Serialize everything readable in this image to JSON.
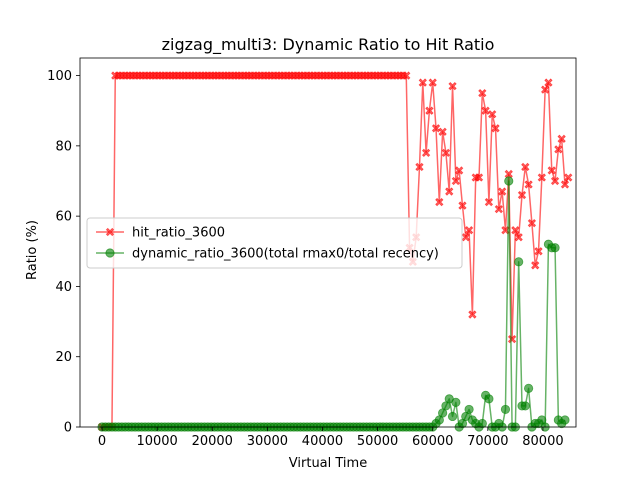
{
  "chart_data": {
    "type": "line",
    "title": "zigzag_multi3: Dynamic Ratio to Hit Ratio",
    "xlabel": "Virtual Time",
    "ylabel": "Ratio (%)",
    "xlim": [
      -4000,
      86000
    ],
    "ylim": [
      0,
      105
    ],
    "xticks": [
      0,
      10000,
      20000,
      30000,
      40000,
      50000,
      60000,
      70000,
      80000
    ],
    "yticks": [
      0,
      20,
      40,
      60,
      80,
      100
    ],
    "legend_placement": "center-left",
    "grid": false,
    "series": [
      {
        "name": "hit_ratio_3600",
        "color": "#ff0000",
        "marker": "X",
        "points": [
          [
            0,
            0
          ],
          [
            600,
            0
          ],
          [
            1200,
            0
          ],
          [
            1800,
            0
          ],
          [
            2400,
            100
          ],
          [
            3000,
            100
          ],
          [
            3600,
            100
          ],
          [
            4200,
            100
          ],
          [
            4800,
            100
          ],
          [
            5400,
            100
          ],
          [
            6000,
            100
          ],
          [
            6600,
            100
          ],
          [
            7200,
            100
          ],
          [
            7800,
            100
          ],
          [
            8400,
            100
          ],
          [
            9000,
            100
          ],
          [
            9600,
            100
          ],
          [
            10200,
            100
          ],
          [
            10800,
            100
          ],
          [
            11400,
            100
          ],
          [
            12000,
            100
          ],
          [
            12600,
            100
          ],
          [
            13200,
            100
          ],
          [
            13800,
            100
          ],
          [
            14400,
            100
          ],
          [
            15000,
            100
          ],
          [
            15600,
            100
          ],
          [
            16200,
            100
          ],
          [
            16800,
            100
          ],
          [
            17400,
            100
          ],
          [
            18000,
            100
          ],
          [
            18600,
            100
          ],
          [
            19200,
            100
          ],
          [
            19800,
            100
          ],
          [
            20400,
            100
          ],
          [
            21000,
            100
          ],
          [
            21600,
            100
          ],
          [
            22200,
            100
          ],
          [
            22800,
            100
          ],
          [
            23400,
            100
          ],
          [
            24000,
            100
          ],
          [
            24600,
            100
          ],
          [
            25200,
            100
          ],
          [
            25800,
            100
          ],
          [
            26400,
            100
          ],
          [
            27000,
            100
          ],
          [
            27600,
            100
          ],
          [
            28200,
            100
          ],
          [
            28800,
            100
          ],
          [
            29400,
            100
          ],
          [
            30000,
            100
          ],
          [
            30600,
            100
          ],
          [
            31200,
            100
          ],
          [
            31800,
            100
          ],
          [
            32400,
            100
          ],
          [
            33000,
            100
          ],
          [
            33600,
            100
          ],
          [
            34200,
            100
          ],
          [
            34800,
            100
          ],
          [
            35400,
            100
          ],
          [
            36000,
            100
          ],
          [
            36600,
            100
          ],
          [
            37200,
            100
          ],
          [
            37800,
            100
          ],
          [
            38400,
            100
          ],
          [
            39000,
            100
          ],
          [
            39600,
            100
          ],
          [
            40200,
            100
          ],
          [
            40800,
            100
          ],
          [
            41400,
            100
          ],
          [
            42000,
            100
          ],
          [
            42600,
            100
          ],
          [
            43200,
            100
          ],
          [
            43800,
            100
          ],
          [
            44400,
            100
          ],
          [
            45000,
            100
          ],
          [
            45600,
            100
          ],
          [
            46200,
            100
          ],
          [
            46800,
            100
          ],
          [
            47400,
            100
          ],
          [
            48000,
            100
          ],
          [
            48600,
            100
          ],
          [
            49200,
            100
          ],
          [
            49800,
            100
          ],
          [
            50400,
            100
          ],
          [
            51000,
            100
          ],
          [
            51600,
            100
          ],
          [
            52200,
            100
          ],
          [
            52800,
            100
          ],
          [
            53400,
            100
          ],
          [
            54000,
            100
          ],
          [
            54600,
            100
          ],
          [
            55200,
            100
          ],
          [
            55800,
            51
          ],
          [
            56400,
            47
          ],
          [
            57000,
            54
          ],
          [
            57600,
            74
          ],
          [
            58200,
            98
          ],
          [
            58800,
            78
          ],
          [
            59400,
            90
          ],
          [
            60000,
            98
          ],
          [
            60600,
            85
          ],
          [
            61200,
            64
          ],
          [
            61800,
            84
          ],
          [
            62400,
            78
          ],
          [
            63000,
            67
          ],
          [
            63600,
            97
          ],
          [
            64200,
            70
          ],
          [
            64800,
            73
          ],
          [
            65400,
            63
          ],
          [
            66000,
            54
          ],
          [
            66600,
            56
          ],
          [
            67200,
            32
          ],
          [
            67800,
            71
          ],
          [
            68400,
            71
          ],
          [
            69000,
            95
          ],
          [
            69600,
            90
          ],
          [
            70200,
            64
          ],
          [
            70800,
            89
          ],
          [
            71400,
            85
          ],
          [
            72000,
            62
          ],
          [
            72600,
            67
          ],
          [
            73200,
            56
          ],
          [
            73800,
            72
          ],
          [
            74400,
            25
          ],
          [
            75000,
            56
          ],
          [
            75600,
            54
          ],
          [
            76200,
            66
          ],
          [
            76800,
            74
          ],
          [
            77400,
            69
          ],
          [
            78000,
            58
          ],
          [
            78600,
            46
          ],
          [
            79200,
            50
          ],
          [
            79800,
            71
          ],
          [
            80400,
            96
          ],
          [
            81000,
            98
          ],
          [
            81600,
            73
          ],
          [
            82200,
            70
          ],
          [
            82800,
            79
          ],
          [
            83400,
            82
          ],
          [
            84000,
            69
          ],
          [
            84600,
            71
          ]
        ]
      },
      {
        "name": "dynamic_ratio_3600(total rmax0/total recency)",
        "color": "#008000",
        "marker": "o",
        "points": [
          [
            0,
            0
          ],
          [
            600,
            0
          ],
          [
            1200,
            0
          ],
          [
            1800,
            0
          ],
          [
            2400,
            0
          ],
          [
            3000,
            0
          ],
          [
            3600,
            0
          ],
          [
            4200,
            0
          ],
          [
            4800,
            0
          ],
          [
            5400,
            0
          ],
          [
            6000,
            0
          ],
          [
            6600,
            0
          ],
          [
            7200,
            0
          ],
          [
            7800,
            0
          ],
          [
            8400,
            0
          ],
          [
            9000,
            0
          ],
          [
            9600,
            0
          ],
          [
            10200,
            0
          ],
          [
            10800,
            0
          ],
          [
            11400,
            0
          ],
          [
            12000,
            0
          ],
          [
            12600,
            0
          ],
          [
            13200,
            0
          ],
          [
            13800,
            0
          ],
          [
            14400,
            0
          ],
          [
            15000,
            0
          ],
          [
            15600,
            0
          ],
          [
            16200,
            0
          ],
          [
            16800,
            0
          ],
          [
            17400,
            0
          ],
          [
            18000,
            0
          ],
          [
            18600,
            0
          ],
          [
            19200,
            0
          ],
          [
            19800,
            0
          ],
          [
            20400,
            0
          ],
          [
            21000,
            0
          ],
          [
            21600,
            0
          ],
          [
            22200,
            0
          ],
          [
            22800,
            0
          ],
          [
            23400,
            0
          ],
          [
            24000,
            0
          ],
          [
            24600,
            0
          ],
          [
            25200,
            0
          ],
          [
            25800,
            0
          ],
          [
            26400,
            0
          ],
          [
            27000,
            0
          ],
          [
            27600,
            0
          ],
          [
            28200,
            0
          ],
          [
            28800,
            0
          ],
          [
            29400,
            0
          ],
          [
            30000,
            0
          ],
          [
            30600,
            0
          ],
          [
            31200,
            0
          ],
          [
            31800,
            0
          ],
          [
            32400,
            0
          ],
          [
            33000,
            0
          ],
          [
            33600,
            0
          ],
          [
            34200,
            0
          ],
          [
            34800,
            0
          ],
          [
            35400,
            0
          ],
          [
            36000,
            0
          ],
          [
            36600,
            0
          ],
          [
            37200,
            0
          ],
          [
            37800,
            0
          ],
          [
            38400,
            0
          ],
          [
            39000,
            0
          ],
          [
            39600,
            0
          ],
          [
            40200,
            0
          ],
          [
            40800,
            0
          ],
          [
            41400,
            0
          ],
          [
            42000,
            0
          ],
          [
            42600,
            0
          ],
          [
            43200,
            0
          ],
          [
            43800,
            0
          ],
          [
            44400,
            0
          ],
          [
            45000,
            0
          ],
          [
            45600,
            0
          ],
          [
            46200,
            0
          ],
          [
            46800,
            0
          ],
          [
            47400,
            0
          ],
          [
            48000,
            0
          ],
          [
            48600,
            0
          ],
          [
            49200,
            0
          ],
          [
            49800,
            0
          ],
          [
            50400,
            0
          ],
          [
            51000,
            0
          ],
          [
            51600,
            0
          ],
          [
            52200,
            0
          ],
          [
            52800,
            0
          ],
          [
            53400,
            0
          ],
          [
            54000,
            0
          ],
          [
            54600,
            0
          ],
          [
            55200,
            0
          ],
          [
            55800,
            0
          ],
          [
            56400,
            0
          ],
          [
            57000,
            0
          ],
          [
            57600,
            0
          ],
          [
            58200,
            0
          ],
          [
            58800,
            0
          ],
          [
            59400,
            0
          ],
          [
            60000,
            0
          ],
          [
            60600,
            1
          ],
          [
            61200,
            2
          ],
          [
            61800,
            4
          ],
          [
            62400,
            6
          ],
          [
            63000,
            8
          ],
          [
            63600,
            3
          ],
          [
            64200,
            7
          ],
          [
            64800,
            0
          ],
          [
            65400,
            1
          ],
          [
            66000,
            3
          ],
          [
            66600,
            5
          ],
          [
            67200,
            2
          ],
          [
            67800,
            1
          ],
          [
            68400,
            0
          ],
          [
            69000,
            1
          ],
          [
            69600,
            9
          ],
          [
            70200,
            8
          ],
          [
            70800,
            0
          ],
          [
            71400,
            0
          ],
          [
            72000,
            1
          ],
          [
            72600,
            0
          ],
          [
            73200,
            5
          ],
          [
            73800,
            70
          ],
          [
            74400,
            0
          ],
          [
            75000,
            0
          ],
          [
            75600,
            47
          ],
          [
            76200,
            6
          ],
          [
            76800,
            6
          ],
          [
            77400,
            11
          ],
          [
            78000,
            0
          ],
          [
            78600,
            1
          ],
          [
            79200,
            1
          ],
          [
            79800,
            2
          ],
          [
            80400,
            0
          ],
          [
            81000,
            52
          ],
          [
            81600,
            51
          ],
          [
            82200,
            51
          ],
          [
            82800,
            2
          ],
          [
            83400,
            1
          ],
          [
            84000,
            2
          ]
        ]
      }
    ]
  }
}
